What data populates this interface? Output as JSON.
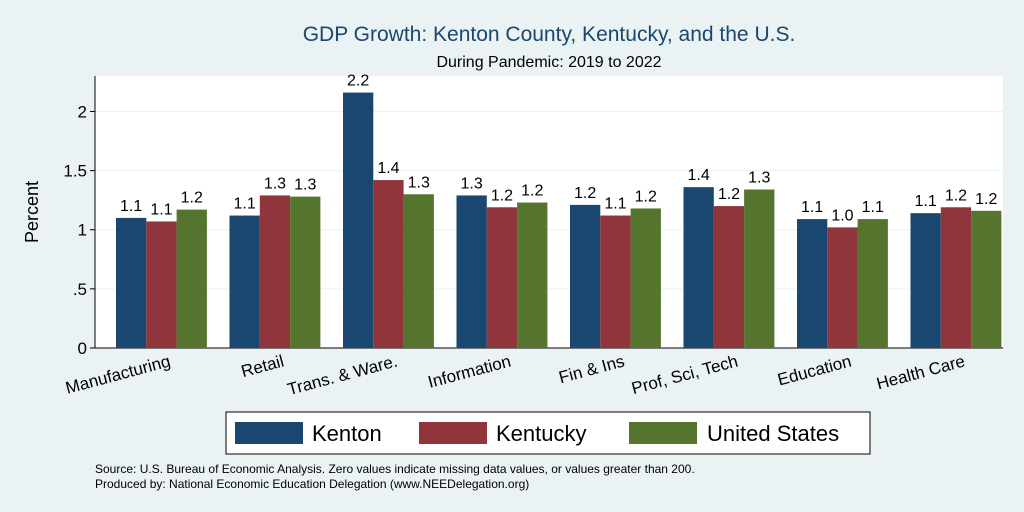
{
  "chart_data": {
    "type": "bar",
    "title": "GDP Growth: Kenton County, Kentucky, and the U.S.",
    "subtitle": "During Pandemic: 2019 to 2022",
    "ylabel": "Percent",
    "xlabel": "",
    "ylim": [
      0,
      2.3
    ],
    "yticks": [
      0,
      0.5,
      1,
      1.5,
      2
    ],
    "ytick_labels": [
      "0",
      ".5",
      "1",
      "1.5",
      "2"
    ],
    "grid": true,
    "legend_position": "bottom",
    "categories": [
      "Manufacturing",
      "Retail",
      "Trans. & Ware.",
      "Information",
      "Fin & Ins",
      "Prof, Sci, Tech",
      "Education",
      "Health Care"
    ],
    "series": [
      {
        "name": "Kenton",
        "color": "#1a476f",
        "values": [
          1.1,
          1.12,
          2.16,
          1.29,
          1.21,
          1.36,
          1.09,
          1.14
        ],
        "labels": [
          "1.1",
          "1.1",
          "2.2",
          "1.3",
          "1.2",
          "1.4",
          "1.1",
          "1.1"
        ]
      },
      {
        "name": "Kentucky",
        "color": "#90353b",
        "values": [
          1.07,
          1.29,
          1.42,
          1.19,
          1.12,
          1.2,
          1.02,
          1.19
        ],
        "labels": [
          "1.1",
          "1.3",
          "1.4",
          "1.2",
          "1.1",
          "1.2",
          "1.0",
          "1.2"
        ]
      },
      {
        "name": "United States",
        "color": "#55752f",
        "values": [
          1.17,
          1.28,
          1.3,
          1.23,
          1.18,
          1.34,
          1.09,
          1.16
        ],
        "labels": [
          "1.2",
          "1.3",
          "1.3",
          "1.2",
          "1.2",
          "1.3",
          "1.1",
          "1.2"
        ]
      }
    ]
  },
  "notes": {
    "source": "Source: U.S. Bureau of Economic Analysis. Zero values indicate missing data values, or values greater than 200.",
    "produced_by": "Produced by: National Economic Education Delegation (www.NEEDelegation.org)"
  }
}
